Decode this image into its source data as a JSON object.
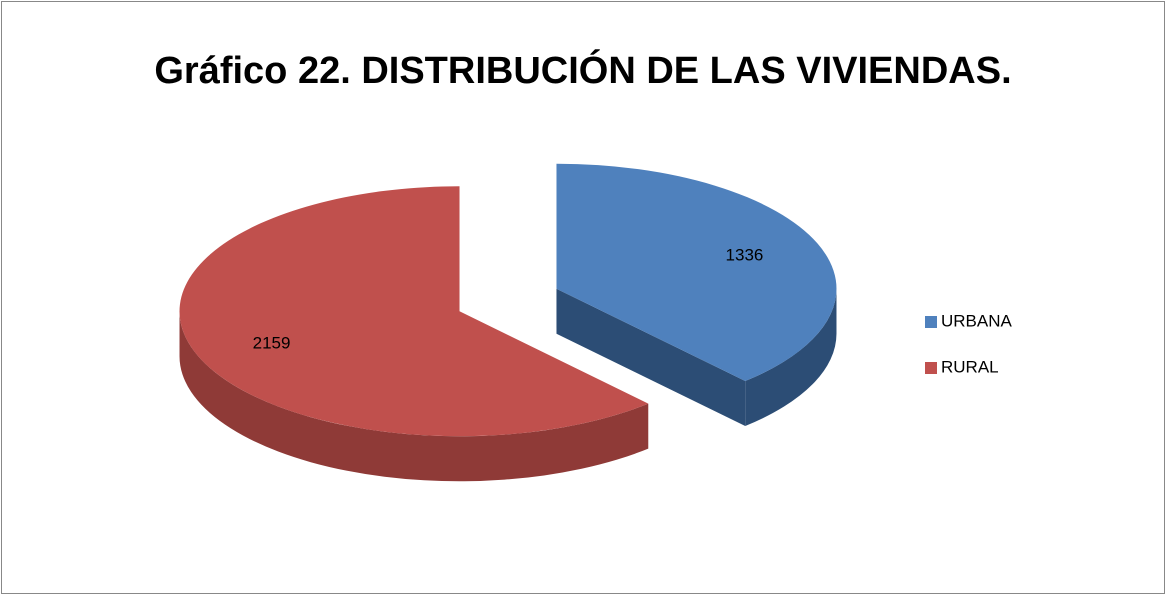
{
  "chart_data": {
    "type": "pie",
    "title": "Gráfico 22. DISTRIBUCIÓN DE LAS VIVIENDAS.",
    "categories": [
      "URBANA",
      "RURAL"
    ],
    "values": [
      1336,
      2159
    ],
    "colors": [
      "#4f81bd",
      "#c0504d"
    ],
    "side_colors": [
      "#2c4d75",
      "#8f3a37"
    ],
    "legend": "right"
  }
}
